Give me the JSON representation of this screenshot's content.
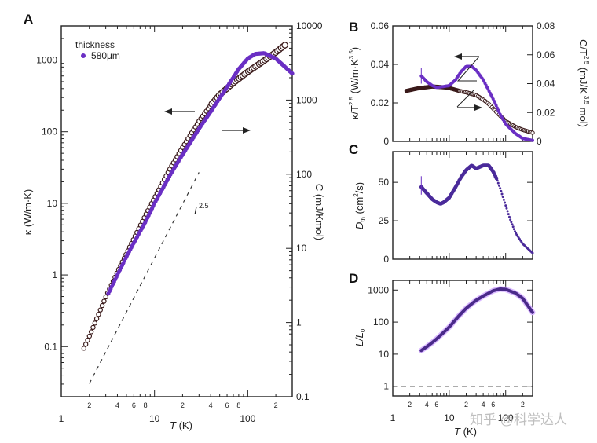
{
  "colors": {
    "kappa": "#6a2fc4",
    "capacity": "#3a1a1a",
    "axis": "#222222"
  },
  "watermark": "知乎 @科学达人",
  "chart_data": [
    {
      "panel": "A",
      "type": "scatter",
      "xscale": "log",
      "xlim": [
        1,
        300
      ],
      "xlabel": "T (K)",
      "x_ticks": [
        "1",
        "10",
        "100"
      ],
      "x_minor_labels": [
        "2",
        "4",
        "6",
        "8",
        "2",
        "4",
        "6",
        "8",
        "2"
      ],
      "ylabel_left": "κ (W/m·K)",
      "yscale_left": "log",
      "ylim_left": [
        0.02,
        3000
      ],
      "y_ticks_left": [
        "0.1",
        "1",
        "10",
        "100",
        "1000"
      ],
      "ylabel_right": "C (mJ/Kmol)",
      "yscale_right": "log",
      "ylim_right": [
        0.1,
        10000
      ],
      "y_ticks_right": [
        "0.1",
        "1",
        "10",
        "100",
        "1000",
        "10000"
      ],
      "legend": {
        "title": "thickness",
        "entries": [
          "580μm"
        ],
        "position": "top-left"
      },
      "annotation": "T^2.5",
      "series": [
        {
          "name": "κ",
          "axis": "left",
          "marker": "filled-circle",
          "x": [
            3.2,
            4,
            5,
            6,
            8,
            10,
            15,
            20,
            30,
            40,
            60,
            80,
            100,
            120,
            150,
            200,
            300
          ],
          "y": [
            0.55,
            1.0,
            1.8,
            2.8,
            5.5,
            10,
            26,
            48,
            110,
            190,
            420,
            750,
            1050,
            1220,
            1250,
            1050,
            650
          ]
        },
        {
          "name": "C",
          "axis": "right",
          "marker": "open-circle",
          "x": [
            1.75,
            2,
            3,
            4,
            5,
            6,
            8,
            10,
            15,
            20,
            30,
            40,
            50,
            70,
            100,
            150,
            200,
            250
          ],
          "y": [
            0.45,
            0.65,
            2.2,
            4.8,
            8.5,
            13.5,
            28,
            48,
            125,
            230,
            520,
            850,
            1180,
            1700,
            2400,
            3400,
            4400,
            5500
          ]
        }
      ],
      "reference_line": {
        "label": "T^2.5",
        "style": "dashed",
        "x": [
          2,
          30
        ],
        "y_right": [
          0.15,
          106
        ]
      }
    },
    {
      "panel": "B",
      "type": "scatter",
      "xscale": "log",
      "xlim": [
        1,
        300
      ],
      "ylabel_left": "κ/T^2.5 (W/m·K^3.5)",
      "ylim_left": [
        0,
        0.06
      ],
      "y_ticks_left": [
        "0",
        "0.02",
        "0.04",
        "0.06"
      ],
      "ylabel_right": "C/T^2.5 (mJ/K^3.5 mol)",
      "ylim_right": [
        0,
        0.08
      ],
      "y_ticks_right": [
        "0",
        "0.02",
        "0.04",
        "0.06",
        "0.08"
      ],
      "series": [
        {
          "name": "κ/T^2.5",
          "axis": "left",
          "x": [
            3.2,
            4,
            5,
            6,
            8,
            10,
            13,
            16,
            20,
            25,
            30,
            40,
            60,
            80,
            100,
            150,
            200,
            300
          ],
          "y": [
            0.034,
            0.031,
            0.029,
            0.028,
            0.0285,
            0.029,
            0.032,
            0.036,
            0.039,
            0.039,
            0.037,
            0.032,
            0.022,
            0.014,
            0.009,
            0.004,
            0.0015,
            0.0005
          ]
        },
        {
          "name": "C/T^2.5",
          "axis": "right",
          "x": [
            1.75,
            2,
            3,
            4,
            5,
            6,
            8,
            10,
            15,
            20,
            30,
            40,
            50,
            70,
            100,
            150,
            200,
            300
          ],
          "y": [
            0.035,
            0.0355,
            0.037,
            0.0375,
            0.038,
            0.0378,
            0.0375,
            0.037,
            0.035,
            0.034,
            0.032,
            0.029,
            0.026,
            0.02,
            0.014,
            0.01,
            0.008,
            0.006
          ]
        }
      ]
    },
    {
      "panel": "C",
      "type": "scatter",
      "xscale": "log",
      "xlim": [
        1,
        300
      ],
      "ylabel": "D_th (cm²/s)",
      "ylim": [
        0,
        70
      ],
      "y_ticks": [
        "0",
        "25",
        "50"
      ],
      "series": [
        {
          "name": "D_th",
          "x": [
            3.2,
            4,
            5,
            6,
            7,
            8,
            10,
            13,
            16,
            20,
            25,
            30,
            40,
            50,
            60,
            70,
            80,
            100,
            120,
            150,
            200,
            300
          ],
          "y": [
            47,
            43,
            39,
            37,
            36,
            37,
            40,
            47,
            53,
            58,
            61,
            59,
            61,
            61,
            57,
            52,
            46,
            35,
            26,
            17,
            10,
            4
          ]
        }
      ]
    },
    {
      "panel": "D",
      "type": "line",
      "xscale": "log",
      "xlim": [
        1,
        300
      ],
      "xlabel": "T (K)",
      "x_ticks": [
        "1",
        "10",
        "100"
      ],
      "x_minor_labels": [
        "2",
        "4",
        "6",
        "2",
        "4",
        "6",
        "2"
      ],
      "ylabel": "L/L_0",
      "yscale": "log",
      "ylim": [
        0.5,
        2000
      ],
      "y_ticks": [
        "1",
        "10",
        "100",
        "1000"
      ],
      "series": [
        {
          "name": "L/L0",
          "x": [
            3.2,
            4,
            5,
            6,
            8,
            10,
            15,
            20,
            30,
            40,
            60,
            80,
            100,
            150,
            200,
            300
          ],
          "y": [
            13,
            17,
            23,
            30,
            48,
            70,
            160,
            270,
            480,
            650,
            950,
            1080,
            1050,
            800,
            550,
            200
          ]
        }
      ],
      "reference_line": {
        "y": 1,
        "style": "dashed"
      }
    }
  ]
}
